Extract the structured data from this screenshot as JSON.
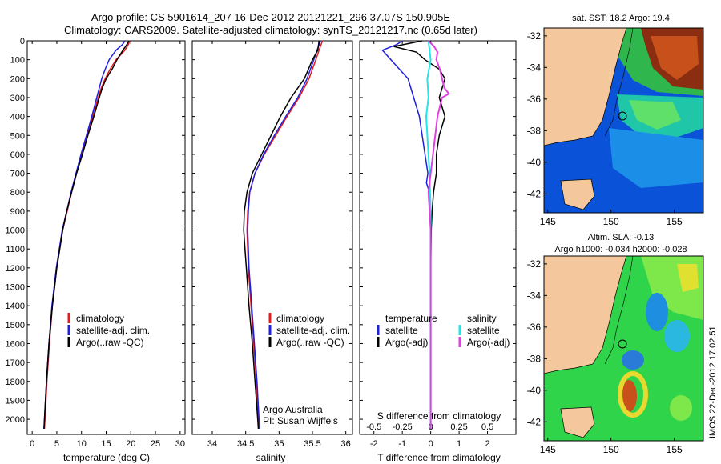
{
  "titles": {
    "line1": "Argo profile: CS 5901614_207 16-Dec-2012 20121221_296 37.07S 150.905E",
    "line2": "Climatology: CARS2009. Satellite-adjusted climatology: synTS_20121217.nc (0.65d later)"
  },
  "colors": {
    "climatology": "#e41a1c",
    "satellite": "#1f1fe0",
    "argo": "#000000",
    "s_satellite": "#20e6e6",
    "s_argo": "#e040e0",
    "land": "#f5c79c",
    "shelf": "#2bd32b"
  },
  "chart_data": [
    {
      "type": "line",
      "name": "temperature-profile",
      "xlabel": "temperature (deg C)",
      "xlim": [
        -1,
        31
      ],
      "xticks": [
        0,
        5,
        10,
        15,
        20,
        25,
        30
      ],
      "ylim": [
        2080,
        0
      ],
      "yticks": [
        0,
        100,
        200,
        300,
        400,
        500,
        600,
        700,
        800,
        900,
        1000,
        1100,
        1200,
        1300,
        1400,
        1500,
        1600,
        1700,
        1800,
        1900,
        2000
      ],
      "legend": [
        "climatology",
        "satellite-adj. clim.",
        "Argo(..raw -QC)"
      ],
      "series": [
        {
          "name": "climatology",
          "color": "#e41a1c",
          "depth": [
            0,
            20,
            50,
            100,
            150,
            200,
            250,
            300,
            400,
            500,
            600,
            700,
            800,
            900,
            1000,
            1200,
            1400,
            1600,
            1800,
            2000,
            2050
          ],
          "values": [
            19.8,
            19.5,
            18.8,
            17.0,
            15.8,
            14.8,
            14.0,
            13.4,
            12.3,
            11.2,
            10.1,
            9.0,
            8.0,
            7.1,
            6.2,
            5.0,
            4.1,
            3.5,
            3.0,
            2.6,
            2.5
          ]
        },
        {
          "name": "satellite-adj. clim.",
          "color": "#1f1fe0",
          "depth": [
            0,
            20,
            50,
            100,
            150,
            200,
            250,
            300,
            400,
            500,
            600,
            700,
            800,
            900,
            1000,
            1200,
            1400,
            1600,
            1800,
            2000,
            2050
          ],
          "values": [
            18.8,
            18.3,
            17.0,
            15.6,
            14.8,
            14.1,
            13.6,
            13.1,
            12.1,
            11.0,
            9.9,
            8.9,
            7.9,
            7.0,
            6.1,
            4.9,
            4.0,
            3.4,
            2.9,
            2.5,
            2.4
          ]
        },
        {
          "name": "Argo(..raw -QC)",
          "color": "#000000",
          "depth": [
            0,
            20,
            50,
            100,
            150,
            200,
            250,
            300,
            400,
            500,
            600,
            700,
            800,
            900,
            1000,
            1200,
            1400,
            1600,
            1800,
            2000,
            2050
          ],
          "values": [
            19.6,
            19.2,
            18.4,
            17.2,
            16.2,
            15.0,
            14.2,
            13.6,
            12.5,
            11.3,
            10.2,
            9.0,
            8.0,
            7.0,
            6.2,
            5.0,
            4.1,
            3.4,
            2.9,
            2.5,
            2.4
          ]
        }
      ]
    },
    {
      "type": "line",
      "name": "salinity-profile",
      "xlabel": "salinity",
      "xlim": [
        33.7,
        36.1
      ],
      "xticks": [
        34,
        34.5,
        35,
        35.5,
        36
      ],
      "ylim": [
        2080,
        0
      ],
      "legend": [
        "climatology",
        "satellite-adj. clim.",
        "Argo(..raw -QC)"
      ],
      "annotations": [
        "Argo Australia",
        "PI: Susan Wijffels"
      ],
      "series": [
        {
          "name": "climatology",
          "color": "#e41a1c",
          "depth": [
            0,
            50,
            100,
            200,
            300,
            400,
            500,
            600,
            700,
            800,
            900,
            1000,
            1200,
            1400,
            1600,
            1800,
            2000,
            2050
          ],
          "values": [
            35.65,
            35.6,
            35.55,
            35.45,
            35.3,
            35.12,
            34.95,
            34.78,
            34.64,
            34.56,
            34.53,
            34.52,
            34.54,
            34.58,
            34.62,
            34.66,
            34.69,
            34.7
          ]
        },
        {
          "name": "satellite-adj. clim.",
          "color": "#1f1fe0",
          "depth": [
            0,
            50,
            100,
            200,
            300,
            400,
            500,
            600,
            700,
            800,
            900,
            1000,
            1200,
            1400,
            1600,
            1800,
            2000,
            2050
          ],
          "values": [
            35.62,
            35.57,
            35.52,
            35.42,
            35.28,
            35.1,
            34.93,
            34.77,
            34.64,
            34.56,
            34.54,
            34.53,
            34.55,
            34.59,
            34.63,
            34.67,
            34.7,
            34.71
          ]
        },
        {
          "name": "Argo(..raw -QC)",
          "color": "#000000",
          "depth": [
            0,
            50,
            100,
            200,
            300,
            400,
            500,
            600,
            700,
            800,
            900,
            1000,
            1100,
            1200,
            1400,
            1600,
            1800,
            2000,
            2050
          ],
          "values": [
            35.6,
            35.58,
            35.5,
            35.38,
            35.18,
            35.02,
            34.88,
            34.74,
            34.6,
            34.52,
            34.48,
            34.47,
            34.49,
            34.51,
            34.55,
            34.6,
            34.64,
            34.68,
            34.69
          ]
        }
      ]
    },
    {
      "type": "line",
      "name": "difference-profile",
      "xlabel": "T difference from climatology",
      "xlabel2": "S difference from climatology",
      "xlim": [
        -2.5,
        3
      ],
      "xticks": [
        -2,
        -1,
        0,
        1,
        2
      ],
      "xticks2": [
        -0.5,
        -0.25,
        0,
        0.25,
        0.5
      ],
      "ylim": [
        2080,
        0
      ],
      "legend_titles": [
        "temperature",
        "salinity"
      ],
      "legend": [
        "satellite",
        "Argo(-adj)",
        "satellite",
        "Argo(-adj)"
      ],
      "series": [
        {
          "name": "satellite",
          "group": "temperature",
          "color": "#1f1fe0",
          "depth": [
            0,
            20,
            50,
            100,
            150,
            200,
            300,
            400,
            500,
            600,
            700,
            750,
            800,
            900,
            1000,
            1200,
            1500,
            1800,
            2050
          ],
          "values": [
            -1.0,
            -1.2,
            -1.7,
            -1.4,
            -1.1,
            -0.8,
            -0.6,
            -0.4,
            -0.3,
            -0.2,
            -0.1,
            -0.15,
            -0.05,
            0,
            0,
            0,
            0,
            0,
            0
          ]
        },
        {
          "name": "Argo(-adj)",
          "group": "temperature",
          "color": "#000000",
          "depth": [
            0,
            30,
            60,
            100,
            150,
            200,
            300,
            400,
            500,
            600,
            700,
            800,
            900,
            1000,
            1200,
            1500,
            1800,
            2050
          ],
          "values": [
            -0.3,
            -1.3,
            -0.5,
            -0.2,
            0.3,
            0.5,
            0.3,
            0.5,
            0.3,
            0.2,
            0.2,
            0.1,
            0.05,
            0.02,
            0,
            0,
            0,
            0
          ]
        },
        {
          "name": "satellite",
          "group": "salinity",
          "color": "#20e6e6",
          "depth": [
            0,
            50,
            100,
            200,
            300,
            400,
            500,
            700,
            900,
            1200,
            1500,
            1800,
            2050
          ],
          "values": [
            -0.02,
            -0.01,
            0,
            -0.03,
            -0.02,
            -0.04,
            -0.03,
            -0.01,
            0,
            0,
            0,
            0,
            0
          ]
        },
        {
          "name": "Argo(-adj)",
          "group": "salinity",
          "color": "#e040e0",
          "depth": [
            0,
            30,
            60,
            100,
            150,
            200,
            250,
            280,
            300,
            400,
            500,
            600,
            700,
            800,
            900,
            1000,
            1200,
            1500,
            1800,
            2050
          ],
          "values": [
            -0.02,
            0.03,
            0.06,
            0.05,
            0.08,
            0.1,
            0.12,
            0.16,
            0.1,
            0.06,
            0.04,
            0.02,
            0,
            -0.02,
            -0.01,
            0,
            0,
            0,
            0,
            0
          ]
        }
      ]
    },
    {
      "type": "heatmap",
      "name": "sst-map",
      "title": "sat. SST: 18.2 Argo: 19.4",
      "xlim": [
        144.7,
        157.3
      ],
      "ylim": [
        -43.2,
        -31.5
      ],
      "xticks": [
        145,
        150,
        155
      ],
      "yticks": [
        -32,
        -34,
        -36,
        -38,
        -40,
        -42
      ],
      "float_position": [
        150.905,
        -37.07
      ]
    },
    {
      "type": "heatmap",
      "name": "sla-map",
      "title": "Altim. SLA: -0.13",
      "subtitle": "Argo h1000: -0.034 h2000: -0.028",
      "xlim": [
        144.7,
        157.3
      ],
      "ylim": [
        -43.2,
        -31.5
      ],
      "xticks": [
        145,
        150,
        155
      ],
      "yticks": [
        -32,
        -34,
        -36,
        -38,
        -40,
        -42
      ],
      "float_position": [
        150.905,
        -37.07
      ]
    }
  ],
  "credit": "IMOS 22-Dec-2012 17:02:51"
}
